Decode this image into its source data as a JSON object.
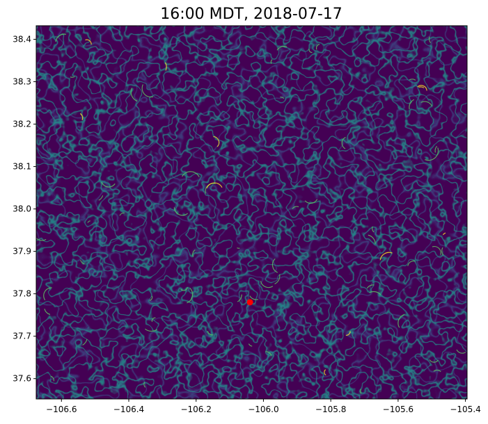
{
  "chart_data": {
    "type": "heatmap",
    "title": "16:00 MDT, 2018-07-17",
    "xlabel": "",
    "ylabel": "",
    "xlim": [
      -106.675,
      -105.395
    ],
    "ylim": [
      37.552,
      38.432
    ],
    "x_ticks": [
      {
        "value": -106.6,
        "label": "−106.6"
      },
      {
        "value": -106.4,
        "label": "−106.4"
      },
      {
        "value": -106.2,
        "label": "−106.2"
      },
      {
        "value": -106.0,
        "label": "−106.0"
      },
      {
        "value": -105.8,
        "label": "−105.8"
      },
      {
        "value": -105.6,
        "label": "−105.6"
      },
      {
        "value": -105.4,
        "label": "−105.4"
      }
    ],
    "y_ticks": [
      {
        "value": 37.6,
        "label": "37.6"
      },
      {
        "value": 37.7,
        "label": "37.7"
      },
      {
        "value": 37.8,
        "label": "37.8"
      },
      {
        "value": 37.9,
        "label": "37.9"
      },
      {
        "value": 38.0,
        "label": "38.0"
      },
      {
        "value": 38.1,
        "label": "38.1"
      },
      {
        "value": 38.2,
        "label": "38.2"
      },
      {
        "value": 38.3,
        "label": "38.3"
      },
      {
        "value": 38.4,
        "label": "38.4"
      }
    ],
    "colormap": "viridis",
    "background_color": "#440154",
    "line_colors": [
      "#3b528b",
      "#21918c",
      "#5ec962",
      "#fde725"
    ],
    "grid": false,
    "marker": {
      "x": -106.04,
      "y": 37.78,
      "color": "#ff0000"
    }
  }
}
